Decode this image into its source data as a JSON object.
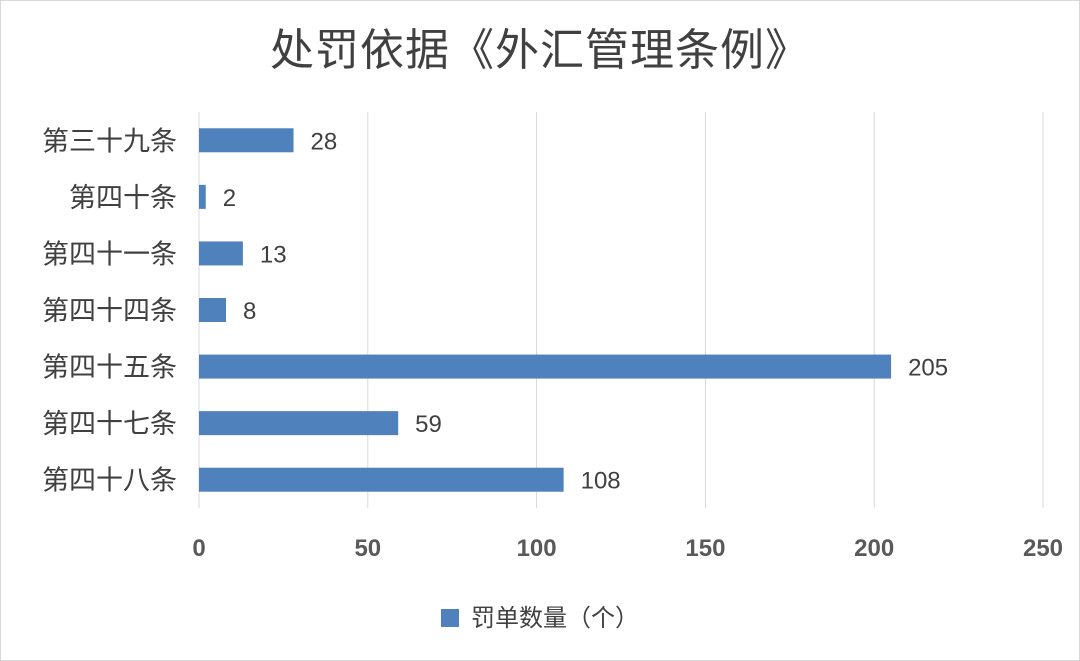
{
  "chart_data": {
    "type": "bar",
    "orientation": "horizontal",
    "title": "处罚依据《外汇管理条例》",
    "categories": [
      "第三十九条",
      "第四十条",
      "第四十一条",
      "第四十四条",
      "第四十五条",
      "第四十七条",
      "第四十八条"
    ],
    "series": [
      {
        "name": "罚单数量（个）",
        "values": [
          28,
          2,
          13,
          8,
          205,
          59,
          108
        ]
      }
    ],
    "xlim": [
      0,
      250
    ],
    "xticks": [
      0,
      50,
      100,
      150,
      200,
      250
    ],
    "grid": true,
    "legend_position": "bottom",
    "colors": {
      "bar": "#4f81bd",
      "grid": "#d9d9d9",
      "text": "#404040"
    }
  }
}
